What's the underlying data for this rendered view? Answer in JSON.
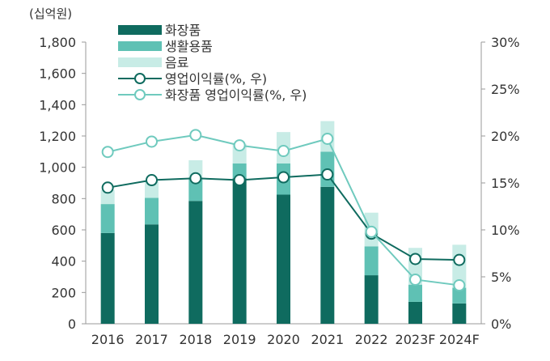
{
  "chart_data": {
    "type": "bar",
    "unit_label": "(십억원)",
    "categories": [
      "2016",
      "2017",
      "2018",
      "2019",
      "2020",
      "2021",
      "2022",
      "2023F",
      "2024F"
    ],
    "left_axis": {
      "ylim": [
        0,
        1800
      ],
      "ticks": [
        0,
        200,
        400,
        600,
        800,
        1000,
        1200,
        1400,
        1600,
        1800
      ],
      "tick_labels": [
        "0",
        "200",
        "400",
        "600",
        "800",
        "1,000",
        "1,200",
        "1,400",
        "1,600",
        "1,800"
      ]
    },
    "right_axis": {
      "ylim": [
        0,
        30
      ],
      "ticks": [
        0,
        5,
        10,
        15,
        20,
        25,
        30
      ],
      "tick_labels": [
        "0%",
        "5%",
        "10%",
        "15%",
        "20%",
        "25%",
        "30%"
      ]
    },
    "bar_series": [
      {
        "name": "화장품",
        "color": "#0f6b5f",
        "values": [
          580,
          635,
          785,
          930,
          825,
          875,
          310,
          140,
          130
        ]
      },
      {
        "name": "생활용품",
        "color": "#5fc1b4",
        "values": [
          185,
          170,
          150,
          95,
          200,
          225,
          185,
          110,
          100
        ]
      },
      {
        "name": "음료",
        "color": "#c8ece6",
        "values": [
          90,
          105,
          110,
          125,
          200,
          195,
          215,
          235,
          275
        ]
      }
    ],
    "line_series": [
      {
        "name": "영업이익률(%, 우)",
        "color": "#0f6b5f",
        "values": [
          14.5,
          15.3,
          15.5,
          15.3,
          15.6,
          15.9,
          9.6,
          6.9,
          6.8
        ]
      },
      {
        "name": "화장품 영업이익률(%, 우)",
        "color": "#6fcabe",
        "values": [
          18.3,
          19.4,
          20.1,
          19.0,
          18.4,
          19.7,
          9.8,
          4.7,
          4.1
        ]
      }
    ],
    "legend_position": "top-left",
    "grid": false
  }
}
